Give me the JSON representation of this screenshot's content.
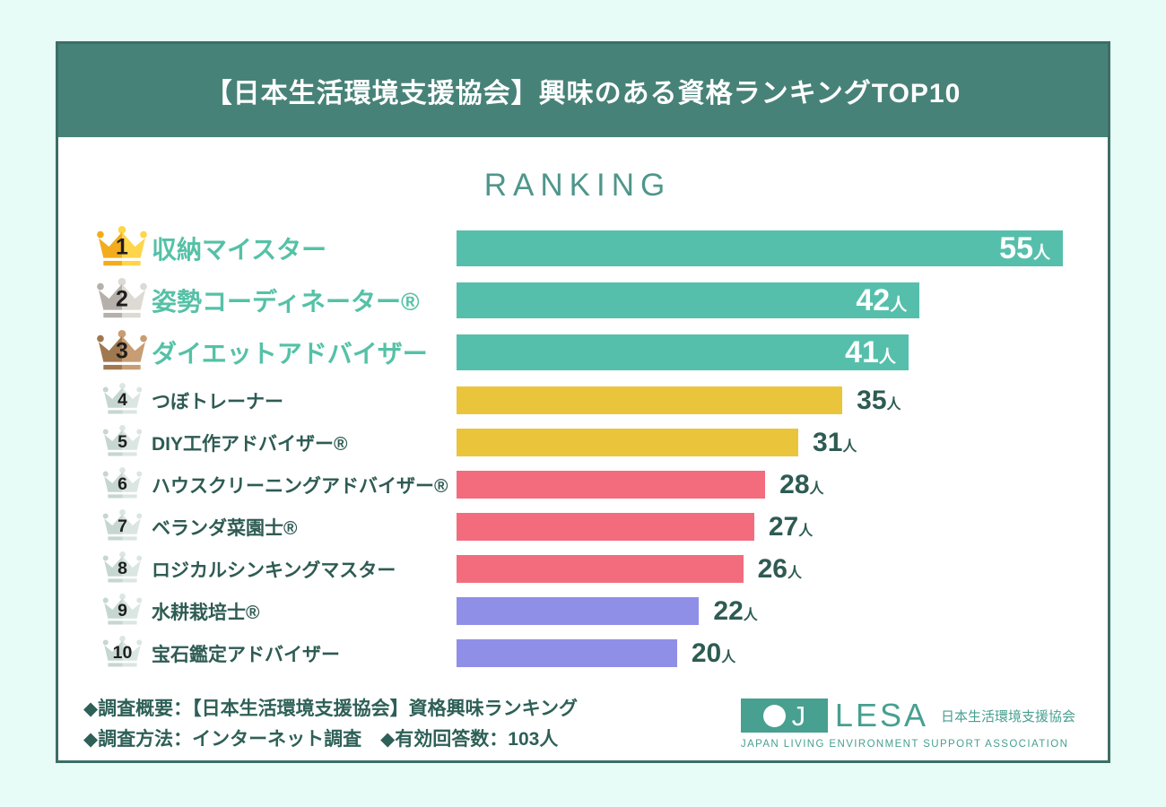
{
  "header": {
    "title": "【日本生活環境支援協会】興味のある資格ランキングTOP10",
    "bg_color": "#478278"
  },
  "ranking": {
    "heading": "RANKING",
    "unit": "人",
    "max_value": 55,
    "items": [
      {
        "rank": 1,
        "label": "収納マイスター",
        "value": 55,
        "bar_color": "#56bfac",
        "tier": "top",
        "crown": "gold"
      },
      {
        "rank": 2,
        "label": "姿勢コーディネーター®",
        "value": 42,
        "bar_color": "#56bfac",
        "tier": "top",
        "crown": "silver"
      },
      {
        "rank": 3,
        "label": "ダイエットアドバイザー",
        "value": 41,
        "bar_color": "#56bfac",
        "tier": "top",
        "crown": "bronze"
      },
      {
        "rank": 4,
        "label": "つぼトレーナー",
        "value": 35,
        "bar_color": "#eac53c",
        "tier": "normal",
        "crown": "pale"
      },
      {
        "rank": 5,
        "label": "DIY工作アドバイザー®",
        "value": 31,
        "bar_color": "#eac53c",
        "tier": "normal",
        "crown": "pale"
      },
      {
        "rank": 6,
        "label": "ハウスクリーニングアドバイザー®",
        "value": 28,
        "bar_color": "#f26c7e",
        "tier": "normal",
        "crown": "pale"
      },
      {
        "rank": 7,
        "label": "ベランダ菜園士®",
        "value": 27,
        "bar_color": "#f26c7e",
        "tier": "normal",
        "crown": "pale"
      },
      {
        "rank": 8,
        "label": "ロジカルシンキングマスター",
        "value": 26,
        "bar_color": "#f26c7e",
        "tier": "normal",
        "crown": "pale"
      },
      {
        "rank": 9,
        "label": "水耕栽培士®",
        "value": 22,
        "bar_color": "#8f8fe8",
        "tier": "normal",
        "crown": "pale"
      },
      {
        "rank": 10,
        "label": "宝石鑑定アドバイザー",
        "value": 20,
        "bar_color": "#8f8fe8",
        "tier": "normal",
        "crown": "pale"
      }
    ]
  },
  "footer": {
    "line1": "◆調査概要：【日本生活環境支援協会】資格興味ランキング",
    "line2": "◆調査方法：インターネット調査　◆有効回答数：103人",
    "logo": {
      "initial": "J",
      "name": "LESA",
      "jp": "日本生活環境支援協会",
      "en": "JAPAN LIVING ENVIRONMENT SUPPORT ASSOCIATION",
      "color": "#47a090"
    }
  },
  "chart_data": {
    "type": "bar",
    "orientation": "horizontal",
    "title": "RANKING",
    "categories": [
      "収納マイスター",
      "姿勢コーディネーター®",
      "ダイエットアドバイザー",
      "つぼトレーナー",
      "DIY工作アドバイザー®",
      "ハウスクリーニングアドバイザー®",
      "ベランダ菜園士®",
      "ロジカルシンキングマスター",
      "水耕栽培士®",
      "宝石鑑定アドバイザー"
    ],
    "values": [
      55,
      42,
      41,
      35,
      31,
      28,
      27,
      26,
      22,
      20
    ],
    "unit": "人",
    "xlim": [
      0,
      55
    ],
    "grid": false,
    "legend": false,
    "bar_colors": [
      "#56bfac",
      "#56bfac",
      "#56bfac",
      "#eac53c",
      "#eac53c",
      "#f26c7e",
      "#f26c7e",
      "#f26c7e",
      "#8f8fe8",
      "#8f8fe8"
    ],
    "value_labels": [
      "55人",
      "42人",
      "41人",
      "35人",
      "31人",
      "28人",
      "27人",
      "26人",
      "22人",
      "20人"
    ],
    "sample_size": 103
  }
}
